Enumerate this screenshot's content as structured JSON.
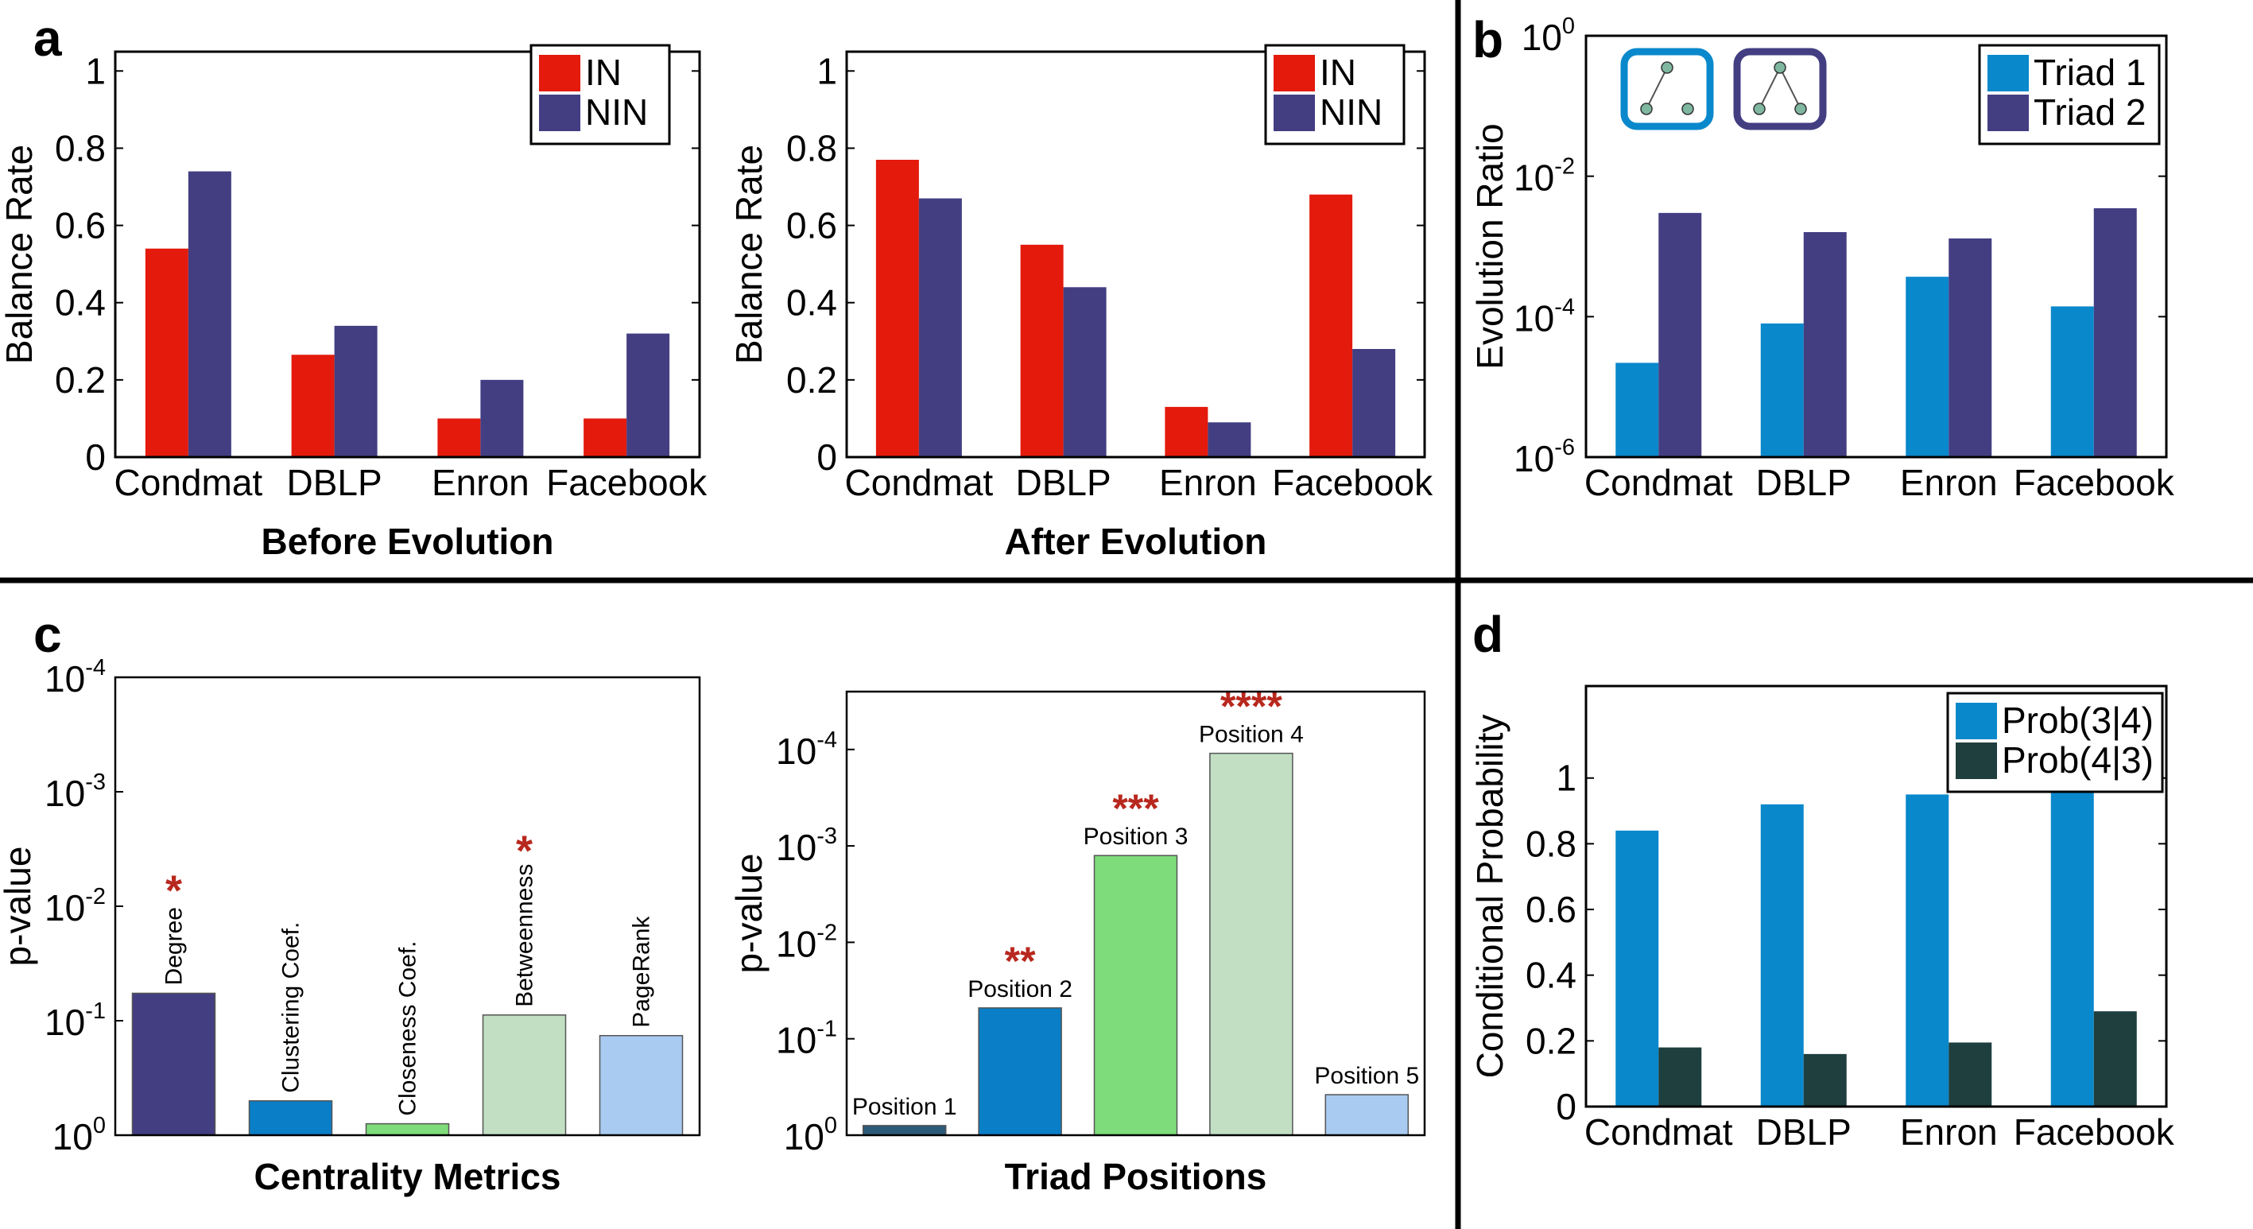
{
  "colors": {
    "in": "#e31a0c",
    "nin": "#433e82",
    "triad1": "#0a88cc",
    "triad2": "#433e82",
    "prob34": "#0a88cc",
    "prob43": "#1f3f3f",
    "star": "#b8281e",
    "frame": "#000000"
  },
  "panels": {
    "a_label": "a",
    "b_label": "b",
    "c_label": "c",
    "d_label": "d"
  },
  "chart_data": [
    {
      "id": "a1",
      "type": "bar",
      "title": "Before Evolution",
      "xlabel": "Before Evolution",
      "ylabel": "Balance Rate",
      "categories": [
        "Condmat",
        "DBLP",
        "Enron",
        "Facebook"
      ],
      "ylim": [
        0,
        1.05
      ],
      "yticks": [
        0,
        0.2,
        0.4,
        0.6,
        0.8,
        1
      ],
      "ytick_labels": [
        "0",
        "0.2",
        "0.4",
        "0.6",
        "0.8",
        "1"
      ],
      "series": [
        {
          "name": "IN",
          "color_key": "in",
          "values": [
            0.54,
            0.265,
            0.1,
            0.1
          ]
        },
        {
          "name": "NIN",
          "color_key": "nin",
          "values": [
            0.74,
            0.34,
            0.2,
            0.32
          ]
        }
      ],
      "legend": "top-right"
    },
    {
      "id": "a2",
      "type": "bar",
      "title": "After Evolution",
      "xlabel": "After Evolution",
      "ylabel": "Balance Rate",
      "categories": [
        "Condmat",
        "DBLP",
        "Enron",
        "Facebook"
      ],
      "ylim": [
        0,
        1.05
      ],
      "yticks": [
        0,
        0.2,
        0.4,
        0.6,
        0.8,
        1
      ],
      "ytick_labels": [
        "0",
        "0.2",
        "0.4",
        "0.6",
        "0.8",
        "1"
      ],
      "series": [
        {
          "name": "IN",
          "color_key": "in",
          "values": [
            0.77,
            0.55,
            0.13,
            0.68
          ]
        },
        {
          "name": "NIN",
          "color_key": "nin",
          "values": [
            0.67,
            0.44,
            0.09,
            0.28
          ]
        }
      ],
      "legend": "top-right"
    },
    {
      "id": "b",
      "type": "bar",
      "scale": "log",
      "xlabel": "",
      "ylabel": "Evolution Ratio",
      "categories": [
        "Condmat",
        "DBLP",
        "Enron",
        "Facebook"
      ],
      "ylim": [
        1e-06,
        1
      ],
      "yticks": [
        1e-06,
        0.0001,
        0.01,
        1
      ],
      "ytick_labels": [
        {
          "base": "10",
          "exp": "-6"
        },
        {
          "base": "10",
          "exp": "-4"
        },
        {
          "base": "10",
          "exp": "-2"
        },
        {
          "base": "10",
          "exp": "0"
        }
      ],
      "series": [
        {
          "name": "Triad 1",
          "color_key": "triad1",
          "values": [
            2.2e-05,
            8e-05,
            0.00037,
            0.00014
          ]
        },
        {
          "name": "Triad 2",
          "color_key": "triad2",
          "values": [
            0.003,
            0.0016,
            0.0013,
            0.0035
          ]
        }
      ],
      "legend": "top-right",
      "icons": [
        "triad-1-icon",
        "triad-2-icon"
      ]
    },
    {
      "id": "c1",
      "type": "bar",
      "scale": "log-inverted",
      "xlabel": "Centrality Metrics",
      "ylabel": "p-value",
      "ytick_labels": [
        {
          "base": "10",
          "exp": "0"
        },
        {
          "base": "10",
          "exp": "-1"
        },
        {
          "base": "10",
          "exp": "-2"
        },
        {
          "base": "10",
          "exp": "-3"
        },
        {
          "base": "10",
          "exp": "-4"
        }
      ],
      "ylim_exp": [
        0,
        4
      ],
      "bars": [
        {
          "label": "Degree",
          "value_exp": 1.24,
          "color": "#433e82",
          "stars": "*"
        },
        {
          "label": "Clustering Coef.",
          "value_exp": 0.3,
          "color": "#0a7ec7",
          "stars": ""
        },
        {
          "label": "Closeness Coef.",
          "value_exp": 0.1,
          "color": "#7edc7a",
          "stars": ""
        },
        {
          "label": "Betweenness",
          "value_exp": 1.05,
          "color": "#c2dfc4",
          "stars": "*"
        },
        {
          "label": "PageRank",
          "value_exp": 0.87,
          "color": "#a9cbf2",
          "stars": ""
        }
      ]
    },
    {
      "id": "c2",
      "type": "bar",
      "scale": "log-inverted",
      "xlabel": "Triad Positions",
      "ylabel": "p-value",
      "ytick_labels": [
        {
          "base": "10",
          "exp": "0"
        },
        {
          "base": "10",
          "exp": "-1"
        },
        {
          "base": "10",
          "exp": "-2"
        },
        {
          "base": "10",
          "exp": "-3"
        },
        {
          "base": "10",
          "exp": "-4"
        }
      ],
      "ylim_exp": [
        0,
        4.6
      ],
      "bars": [
        {
          "label": "Position 1",
          "value_exp": 0.1,
          "color": "#2c5a79",
          "stars": ""
        },
        {
          "label": "Position 2",
          "value_exp": 1.32,
          "color": "#0a7ec7",
          "stars": "**"
        },
        {
          "label": "Position 3",
          "value_exp": 2.9,
          "color": "#7edc7a",
          "stars": "***"
        },
        {
          "label": "Position 4",
          "value_exp": 3.96,
          "color": "#c2dfc4",
          "stars": "****"
        },
        {
          "label": "Position 5",
          "value_exp": 0.42,
          "color": "#a9cbf2",
          "stars": ""
        }
      ]
    },
    {
      "id": "d",
      "type": "bar",
      "xlabel": "",
      "ylabel": "Conditional Probability",
      "categories": [
        "Condmat",
        "DBLP",
        "Enron",
        "Facebook"
      ],
      "ylim": [
        0,
        1.28
      ],
      "yticks": [
        0,
        0.2,
        0.4,
        0.6,
        0.8,
        1
      ],
      "ytick_labels": [
        "0",
        "0.2",
        "0.4",
        "0.6",
        "0.8",
        "1"
      ],
      "series": [
        {
          "name": "Prob(3|4)",
          "color_key": "prob34",
          "values": [
            0.84,
            0.92,
            0.95,
            0.97
          ]
        },
        {
          "name": "Prob(4|3)",
          "color_key": "prob43",
          "values": [
            0.18,
            0.16,
            0.195,
            0.29
          ]
        }
      ],
      "legend": "top-right"
    }
  ]
}
